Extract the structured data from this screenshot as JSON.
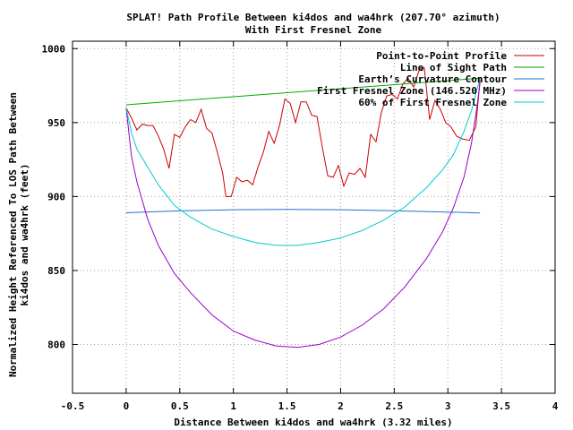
{
  "chart_data": {
    "type": "line",
    "title": "SPLAT! Path Profile Between ki4dos and wa4hrk (207.70° azimuth)",
    "subtitle": "With First Fresnel Zone",
    "xlabel": "Distance Between ki4dos and wa4hrk (3.32 miles)",
    "ylabel_line1": "Normalized Height Referenced To LOS Path Between",
    "ylabel_line2": "ki4dos and wa4hrk (feet)",
    "xlim": [
      -0.5,
      4
    ],
    "ylim": [
      767,
      1005
    ],
    "xticks": [
      {
        "v": -0.5,
        "label": "-0.5"
      },
      {
        "v": 0,
        "label": "0"
      },
      {
        "v": 0.5,
        "label": "0.5"
      },
      {
        "v": 1,
        "label": "1"
      },
      {
        "v": 1.5,
        "label": "1.5"
      },
      {
        "v": 2,
        "label": "2"
      },
      {
        "v": 2.5,
        "label": "2.5"
      },
      {
        "v": 3,
        "label": "3"
      },
      {
        "v": 3.5,
        "label": "3.5"
      },
      {
        "v": 4,
        "label": "4"
      }
    ],
    "yticks": [
      {
        "v": 800,
        "label": "800"
      },
      {
        "v": 850,
        "label": "850"
      },
      {
        "v": 900,
        "label": "900"
      },
      {
        "v": 950,
        "label": "950"
      },
      {
        "v": 1000,
        "label": "1000"
      }
    ],
    "grid": true,
    "legend_position": "top-right",
    "series": [
      {
        "name": "Point-to-Point Profile",
        "color": "#cc0000",
        "points": [
          [
            0,
            960
          ],
          [
            0.05,
            953
          ],
          [
            0.1,
            945
          ],
          [
            0.15,
            949
          ],
          [
            0.2,
            948
          ],
          [
            0.25,
            948
          ],
          [
            0.3,
            941
          ],
          [
            0.35,
            932
          ],
          [
            0.4,
            919
          ],
          [
            0.45,
            942
          ],
          [
            0.5,
            940
          ],
          [
            0.55,
            947
          ],
          [
            0.6,
            952
          ],
          [
            0.65,
            950
          ],
          [
            0.7,
            959
          ],
          [
            0.75,
            946
          ],
          [
            0.8,
            943
          ],
          [
            0.85,
            930
          ],
          [
            0.9,
            916
          ],
          [
            0.93,
            900
          ],
          [
            0.98,
            900
          ],
          [
            1.03,
            913
          ],
          [
            1.08,
            910
          ],
          [
            1.13,
            911
          ],
          [
            1.18,
            908
          ],
          [
            1.23,
            920
          ],
          [
            1.28,
            930
          ],
          [
            1.33,
            944
          ],
          [
            1.38,
            936
          ],
          [
            1.43,
            948
          ],
          [
            1.48,
            966
          ],
          [
            1.53,
            963
          ],
          [
            1.58,
            950
          ],
          [
            1.63,
            964
          ],
          [
            1.68,
            964
          ],
          [
            1.73,
            955
          ],
          [
            1.78,
            954
          ],
          [
            1.83,
            933
          ],
          [
            1.88,
            914
          ],
          [
            1.93,
            913
          ],
          [
            1.98,
            921
          ],
          [
            2.03,
            907
          ],
          [
            2.08,
            916
          ],
          [
            2.13,
            915
          ],
          [
            2.18,
            919
          ],
          [
            2.23,
            913
          ],
          [
            2.28,
            942
          ],
          [
            2.33,
            937
          ],
          [
            2.38,
            957
          ],
          [
            2.43,
            968
          ],
          [
            2.48,
            969
          ],
          [
            2.53,
            966
          ],
          [
            2.58,
            976
          ],
          [
            2.63,
            980
          ],
          [
            2.68,
            974
          ],
          [
            2.73,
            985
          ],
          [
            2.78,
            987
          ],
          [
            2.83,
            952
          ],
          [
            2.88,
            965
          ],
          [
            2.93,
            959
          ],
          [
            2.98,
            950
          ],
          [
            3.03,
            947
          ],
          [
            3.08,
            941
          ],
          [
            3.13,
            939
          ],
          [
            3.2,
            938
          ],
          [
            3.26,
            947
          ],
          [
            3.3,
            979
          ]
        ]
      },
      {
        "name": "Line of Sight Path",
        "color": "#00aa00",
        "points": [
          [
            0,
            962
          ],
          [
            3.3,
            980
          ]
        ]
      },
      {
        "name": "Earth’s Curvature Contour",
        "color": "#1e6fd0",
        "points": [
          [
            0,
            889
          ],
          [
            0.5,
            890.3
          ],
          [
            1.0,
            891.1
          ],
          [
            1.5,
            891.3
          ],
          [
            2.0,
            891.1
          ],
          [
            2.5,
            890.4
          ],
          [
            3.0,
            889.5
          ],
          [
            3.3,
            888.9
          ]
        ]
      },
      {
        "name": "First Fresnel Zone (146.520 MHz)",
        "color": "#9900cc",
        "points": [
          [
            0,
            960
          ],
          [
            0.05,
            927
          ],
          [
            0.1,
            910
          ],
          [
            0.2,
            885
          ],
          [
            0.3,
            867
          ],
          [
            0.45,
            848
          ],
          [
            0.6,
            835
          ],
          [
            0.8,
            820
          ],
          [
            1.0,
            809
          ],
          [
            1.2,
            803
          ],
          [
            1.4,
            799
          ],
          [
            1.6,
            798
          ],
          [
            1.8,
            800
          ],
          [
            2.0,
            805
          ],
          [
            2.2,
            813
          ],
          [
            2.4,
            824
          ],
          [
            2.6,
            839
          ],
          [
            2.8,
            858
          ],
          [
            2.95,
            876
          ],
          [
            3.05,
            892
          ],
          [
            3.15,
            913
          ],
          [
            3.22,
            936
          ],
          [
            3.27,
            960
          ],
          [
            3.3,
            977
          ]
        ]
      },
      {
        "name": "60% of First Fresnel Zone",
        "color": "#00cccc",
        "points": [
          [
            0,
            960
          ],
          [
            0.05,
            943
          ],
          [
            0.1,
            932
          ],
          [
            0.2,
            920
          ],
          [
            0.3,
            908
          ],
          [
            0.45,
            894
          ],
          [
            0.6,
            886
          ],
          [
            0.8,
            878
          ],
          [
            1.0,
            873
          ],
          [
            1.2,
            869
          ],
          [
            1.4,
            867
          ],
          [
            1.6,
            867
          ],
          [
            1.8,
            869
          ],
          [
            2.0,
            872
          ],
          [
            2.2,
            877
          ],
          [
            2.4,
            884
          ],
          [
            2.6,
            893
          ],
          [
            2.8,
            906
          ],
          [
            2.95,
            918
          ],
          [
            3.05,
            928
          ],
          [
            3.15,
            944
          ],
          [
            3.22,
            958
          ],
          [
            3.27,
            972
          ],
          [
            3.3,
            980
          ]
        ]
      }
    ]
  }
}
